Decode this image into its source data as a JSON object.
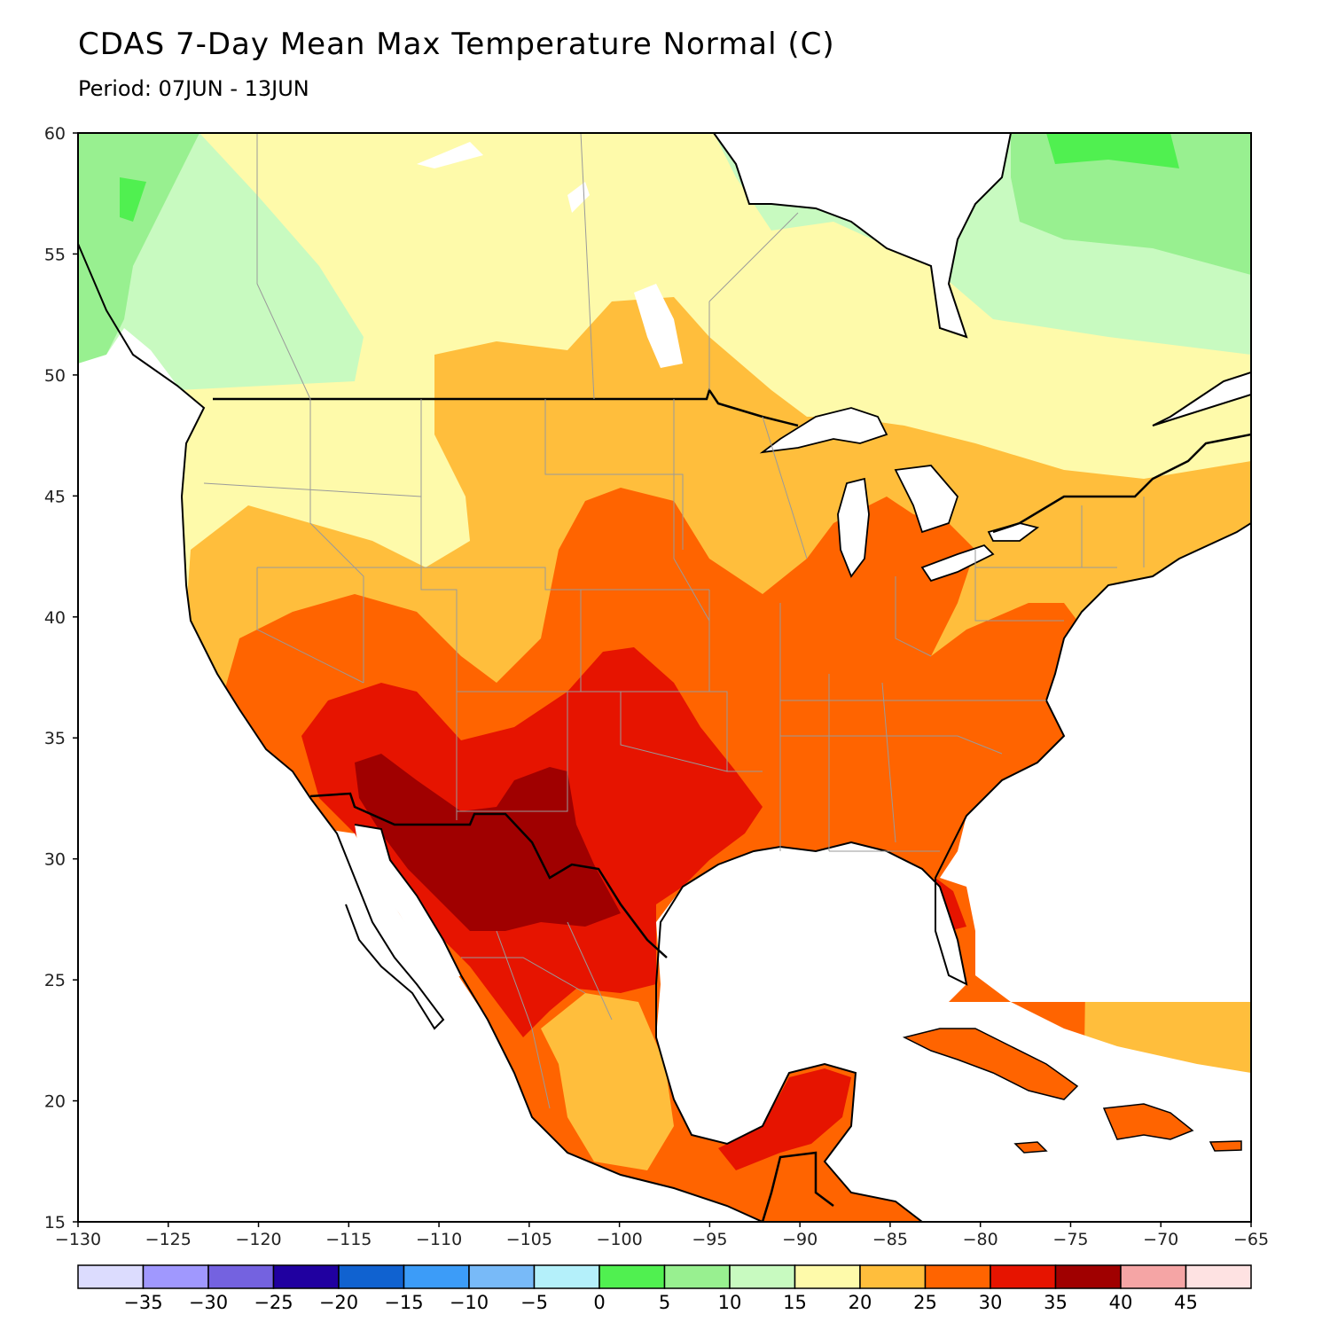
{
  "title": "CDAS 7-Day Mean Max Temperature Normal (C)",
  "subtitle": "Period: 07JUN - 13JUN",
  "map": {
    "lon_range": [
      -130,
      -65
    ],
    "lat_range": [
      15,
      60
    ],
    "lon_ticks": [
      {
        "value": -130,
        "label": "−130"
      },
      {
        "value": -125,
        "label": "−125"
      },
      {
        "value": -120,
        "label": "−120"
      },
      {
        "value": -115,
        "label": "−115"
      },
      {
        "value": -110,
        "label": "−110"
      },
      {
        "value": -105,
        "label": "−105"
      },
      {
        "value": -100,
        "label": "−100"
      },
      {
        "value": -95,
        "label": "−95"
      },
      {
        "value": -90,
        "label": "−90"
      },
      {
        "value": -85,
        "label": "−85"
      },
      {
        "value": -80,
        "label": "−80"
      },
      {
        "value": -75,
        "label": "−75"
      },
      {
        "value": -70,
        "label": "−70"
      },
      {
        "value": -65,
        "label": "−65"
      }
    ],
    "lat_ticks": [
      {
        "value": 15,
        "label": "15"
      },
      {
        "value": 20,
        "label": "20"
      },
      {
        "value": 25,
        "label": "25"
      },
      {
        "value": 30,
        "label": "30"
      },
      {
        "value": 35,
        "label": "35"
      },
      {
        "value": 40,
        "label": "40"
      },
      {
        "value": 45,
        "label": "45"
      },
      {
        "value": 50,
        "label": "50"
      },
      {
        "value": 55,
        "label": "55"
      },
      {
        "value": 60,
        "label": "60"
      }
    ]
  },
  "colorbar": {
    "colors": [
      "#dcdcfe",
      "#a098fe",
      "#7462e0",
      "#2000a0",
      "#1062d0",
      "#3c9cf8",
      "#78baf8",
      "#b4f0fa",
      "#50f050",
      "#98f090",
      "#c8fac0",
      "#fefaaa",
      "#ffbe3c",
      "#ff6400",
      "#e61400",
      "#a00000",
      "#f5a5a5",
      "#fee2e2"
    ],
    "labels": [
      "−35",
      "−30",
      "−25",
      "−20",
      "−15",
      "−10",
      "−5",
      "0",
      "5",
      "10",
      "15",
      "20",
      "25",
      "30",
      "35",
      "40",
      "45"
    ]
  },
  "colors": {
    "t0_5": "#50f050",
    "t5_10": "#98f090",
    "t10_15": "#c8fac0",
    "t15_20": "#fefaaa",
    "t20_25": "#ffbe3c",
    "t25_30": "#ff6400",
    "t30_35": "#e61400",
    "t35_40": "#a00000",
    "water": "#ffffff",
    "coast": "#000000",
    "state_lines": "#9a9a9a"
  }
}
